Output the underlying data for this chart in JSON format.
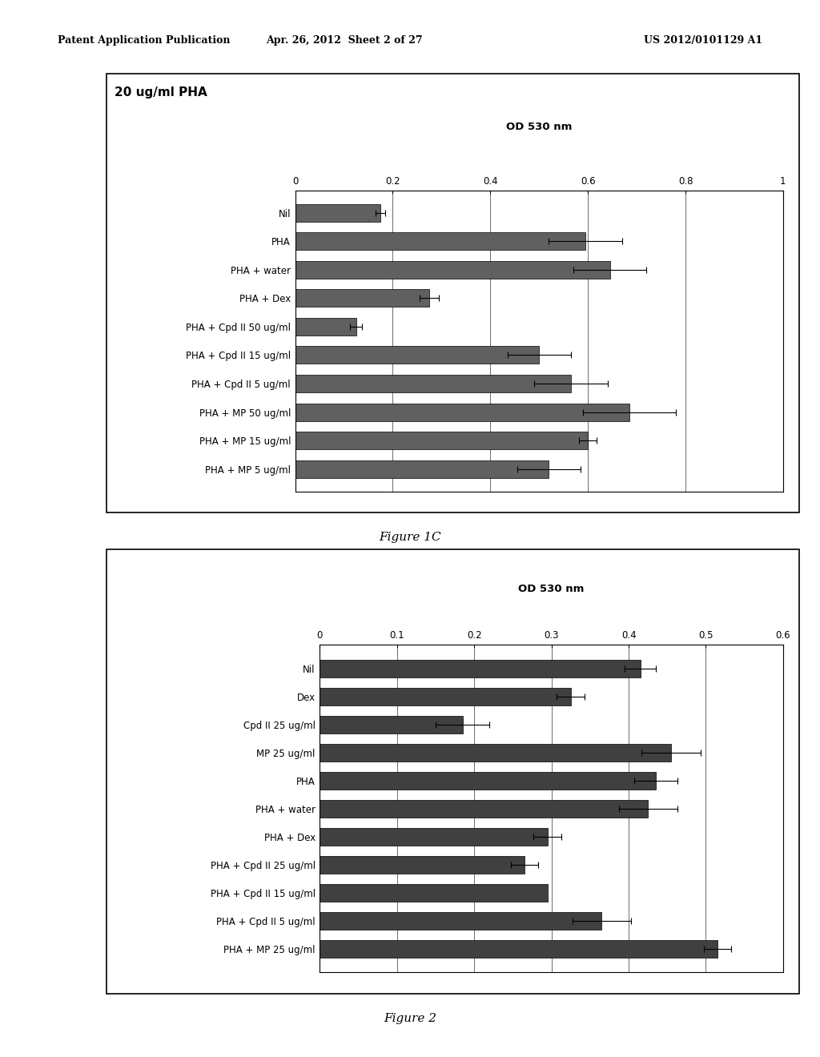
{
  "fig1c": {
    "title": "20 ug/ml PHA",
    "xlabel": "OD 530 nm",
    "xlim": [
      0,
      1.0
    ],
    "xticks": [
      0,
      0.2,
      0.4,
      0.6,
      0.8,
      1.0
    ],
    "xtick_labels": [
      "0",
      "0.2",
      "0.4",
      "0.6",
      "0.8",
      "1"
    ],
    "categories": [
      "Nil",
      "PHA",
      "PHA + water",
      "PHA + Dex",
      "PHA + Cpd II 50 ug/ml",
      "PHA + Cpd II 15 ug/ml",
      "PHA + Cpd II 5 ug/ml",
      "PHA + MP 50 ug/ml",
      "PHA + MP 15 ug/ml",
      "PHA + MP 5 ug/ml"
    ],
    "values": [
      0.175,
      0.595,
      0.645,
      0.275,
      0.125,
      0.5,
      0.565,
      0.685,
      0.6,
      0.52
    ],
    "errors": [
      0.01,
      0.075,
      0.075,
      0.02,
      0.012,
      0.065,
      0.075,
      0.095,
      0.018,
      0.065
    ],
    "bar_color": "#606060",
    "error_color": "#000000",
    "fig_caption": "Figure 1C"
  },
  "fig2": {
    "title": "",
    "xlabel": "OD 530 nm",
    "xlim": [
      0,
      0.6
    ],
    "xticks": [
      0,
      0.1,
      0.2,
      0.3,
      0.4,
      0.5,
      0.6
    ],
    "xtick_labels": [
      "0",
      "0.1",
      "0.2",
      "0.3",
      "0.4",
      "0.5",
      "0.6"
    ],
    "categories": [
      "Nil",
      "Dex",
      "Cpd II 25 ug/ml",
      "MP 25 ug/ml",
      "PHA",
      "PHA + water",
      "PHA + Dex",
      "PHA + Cpd II 25 ug/ml",
      "PHA + Cpd II 15 ug/ml",
      "PHA + Cpd II 5 ug/ml",
      "PHA + MP 25 ug/ml"
    ],
    "values": [
      0.415,
      0.325,
      0.185,
      0.455,
      0.435,
      0.425,
      0.295,
      0.265,
      0.295,
      0.365,
      0.515
    ],
    "errors": [
      0.02,
      0.018,
      0.035,
      0.038,
      0.028,
      0.038,
      0.018,
      0.018,
      0.0,
      0.038,
      0.018
    ],
    "bar_color": "#404040",
    "error_color": "#000000",
    "fig_caption": "Figure 2"
  },
  "header_left": "Patent Application Publication",
  "header_center": "Apr. 26, 2012  Sheet 2 of 27",
  "header_right": "US 2012/0101129 A1",
  "background_color": "#ffffff"
}
